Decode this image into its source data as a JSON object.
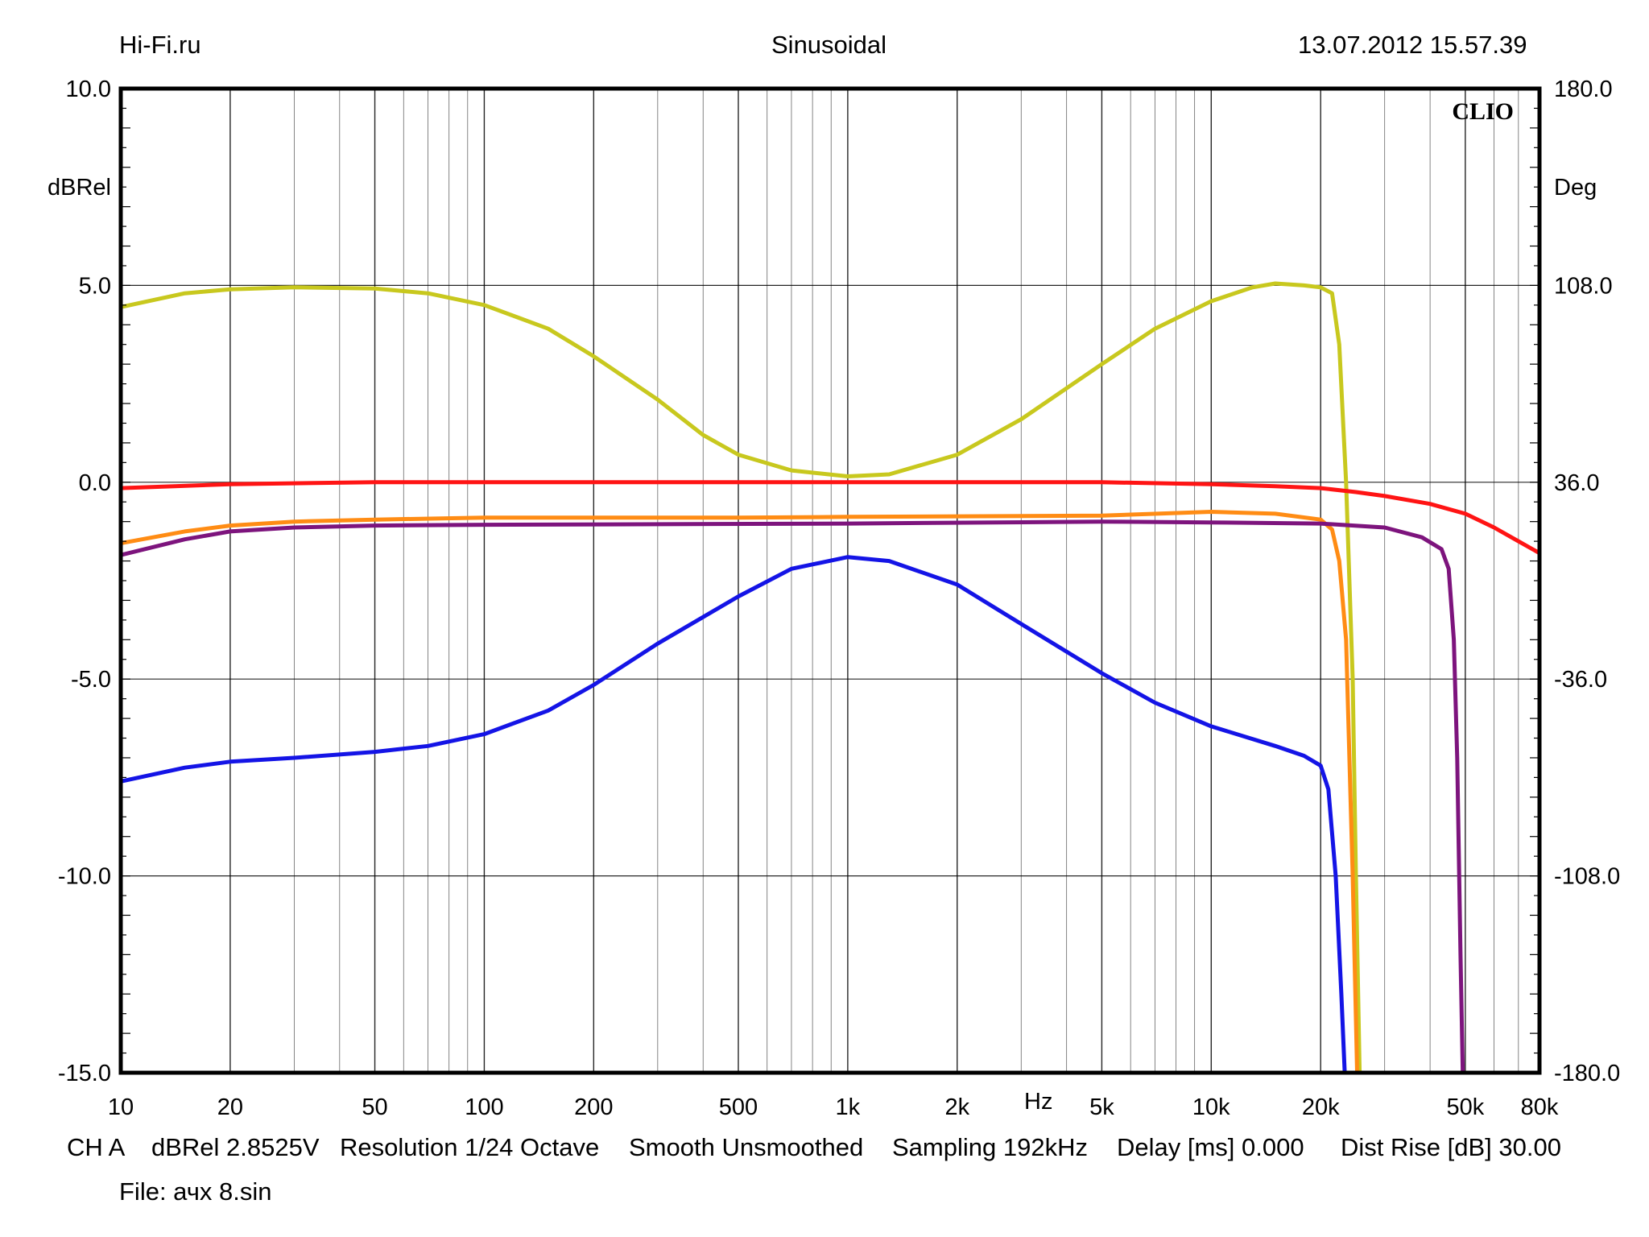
{
  "header": {
    "left": "Hi-Fi.ru",
    "center": "Sinusoidal",
    "right": "13.07.2012 15.57.39"
  },
  "footer": {
    "settings": [
      "CH A",
      "dBRel 2.8525V",
      "Resolution 1/24 Octave",
      "Smooth Unsmoothed",
      "Sampling 192kHz",
      "Delay [ms] 0.000",
      "Dist Rise [dB] 30.00"
    ],
    "file": "File: ачх 8.sin"
  },
  "chart_data": {
    "type": "line",
    "logo": "CLIO",
    "xscale": "log",
    "xlim": [
      10,
      80000
    ],
    "ylim": [
      -15,
      10
    ],
    "y2lim": [
      -180,
      180
    ],
    "xlabel": "Hz",
    "ylabel": "dBRel",
    "y2label": "Deg",
    "grid": true,
    "x_ticks": [
      {
        "v": 10,
        "label": "10"
      },
      {
        "v": 20,
        "label": "20"
      },
      {
        "v": 50,
        "label": "50"
      },
      {
        "v": 100,
        "label": "100"
      },
      {
        "v": 200,
        "label": "200"
      },
      {
        "v": 500,
        "label": "500"
      },
      {
        "v": 1000,
        "label": "1k"
      },
      {
        "v": 2000,
        "label": "2k"
      },
      {
        "v": 5000,
        "label": "5k"
      },
      {
        "v": 10000,
        "label": "10k"
      },
      {
        "v": 20000,
        "label": "20k"
      },
      {
        "v": 50000,
        "label": "50k"
      },
      {
        "v": 80000,
        "label": "80k"
      }
    ],
    "y_ticks": [
      {
        "v": 10,
        "label": "10.0"
      },
      {
        "v": 5,
        "label": "5.0"
      },
      {
        "v": 0,
        "label": "0.0"
      },
      {
        "v": -5,
        "label": "-5.0"
      },
      {
        "v": -10,
        "label": "-10.0"
      },
      {
        "v": -15,
        "label": "-15.0"
      }
    ],
    "y2_ticks": [
      {
        "v": 180,
        "label": "180.0"
      },
      {
        "v": 108,
        "label": "108.0"
      },
      {
        "v": 36,
        "label": "36.0"
      },
      {
        "v": -36,
        "label": "-36.0"
      },
      {
        "v": -108,
        "label": "-108.0"
      },
      {
        "v": -180,
        "label": "-180.0"
      }
    ],
    "series": [
      {
        "color": "#c8c81e",
        "points": [
          [
            10,
            4.45
          ],
          [
            15,
            4.8
          ],
          [
            20,
            4.9
          ],
          [
            30,
            4.95
          ],
          [
            50,
            4.92
          ],
          [
            70,
            4.8
          ],
          [
            100,
            4.5
          ],
          [
            150,
            3.9
          ],
          [
            200,
            3.2
          ],
          [
            300,
            2.1
          ],
          [
            400,
            1.2
          ],
          [
            500,
            0.7
          ],
          [
            700,
            0.3
          ],
          [
            1000,
            0.15
          ],
          [
            1300,
            0.2
          ],
          [
            2000,
            0.7
          ],
          [
            3000,
            1.6
          ],
          [
            5000,
            3.0
          ],
          [
            7000,
            3.9
          ],
          [
            10000,
            4.6
          ],
          [
            13000,
            4.95
          ],
          [
            15000,
            5.05
          ],
          [
            18000,
            5.0
          ],
          [
            20000,
            4.95
          ],
          [
            21500,
            4.8
          ],
          [
            22500,
            3.5
          ],
          [
            23500,
            0.0
          ],
          [
            24500,
            -5.0
          ],
          [
            25000,
            -10.0
          ],
          [
            25600,
            -15.0
          ]
        ]
      },
      {
        "color": "#ff1414",
        "points": [
          [
            10,
            -0.15
          ],
          [
            20,
            -0.05
          ],
          [
            50,
            0.0
          ],
          [
            100,
            0.0
          ],
          [
            1000,
            0.0
          ],
          [
            5000,
            0.0
          ],
          [
            10000,
            -0.05
          ],
          [
            15000,
            -0.1
          ],
          [
            20000,
            -0.15
          ],
          [
            25000,
            -0.25
          ],
          [
            30000,
            -0.35
          ],
          [
            40000,
            -0.55
          ],
          [
            50000,
            -0.8
          ],
          [
            60000,
            -1.15
          ],
          [
            70000,
            -1.5
          ],
          [
            80000,
            -1.8
          ]
        ]
      },
      {
        "color": "#ff8c14",
        "points": [
          [
            10,
            -1.55
          ],
          [
            15,
            -1.25
          ],
          [
            20,
            -1.1
          ],
          [
            30,
            -1.0
          ],
          [
            50,
            -0.95
          ],
          [
            100,
            -0.9
          ],
          [
            500,
            -0.9
          ],
          [
            1000,
            -0.88
          ],
          [
            5000,
            -0.85
          ],
          [
            10000,
            -0.75
          ],
          [
            15000,
            -0.8
          ],
          [
            20000,
            -0.95
          ],
          [
            21500,
            -1.2
          ],
          [
            22500,
            -2.0
          ],
          [
            23500,
            -4.0
          ],
          [
            24500,
            -10.0
          ],
          [
            25200,
            -15.0
          ]
        ]
      },
      {
        "color": "#7d147d",
        "points": [
          [
            10,
            -1.85
          ],
          [
            15,
            -1.45
          ],
          [
            20,
            -1.25
          ],
          [
            30,
            -1.15
          ],
          [
            50,
            -1.1
          ],
          [
            100,
            -1.08
          ],
          [
            1000,
            -1.05
          ],
          [
            5000,
            -1.0
          ],
          [
            10000,
            -1.02
          ],
          [
            20000,
            -1.05
          ],
          [
            30000,
            -1.15
          ],
          [
            38000,
            -1.4
          ],
          [
            43000,
            -1.7
          ],
          [
            45000,
            -2.2
          ],
          [
            46500,
            -4.0
          ],
          [
            47500,
            -7.0
          ],
          [
            48500,
            -12.0
          ],
          [
            49200,
            -15.0
          ]
        ]
      },
      {
        "color": "#1414e6",
        "points": [
          [
            10,
            -7.6
          ],
          [
            15,
            -7.25
          ],
          [
            20,
            -7.1
          ],
          [
            30,
            -7.0
          ],
          [
            50,
            -6.85
          ],
          [
            70,
            -6.7
          ],
          [
            100,
            -6.4
          ],
          [
            150,
            -5.8
          ],
          [
            200,
            -5.15
          ],
          [
            300,
            -4.1
          ],
          [
            500,
            -2.9
          ],
          [
            700,
            -2.2
          ],
          [
            1000,
            -1.9
          ],
          [
            1300,
            -2.0
          ],
          [
            2000,
            -2.6
          ],
          [
            3000,
            -3.6
          ],
          [
            5000,
            -4.85
          ],
          [
            7000,
            -5.6
          ],
          [
            10000,
            -6.2
          ],
          [
            15000,
            -6.7
          ],
          [
            18000,
            -6.95
          ],
          [
            20000,
            -7.2
          ],
          [
            21000,
            -7.8
          ],
          [
            22000,
            -10.0
          ],
          [
            22800,
            -13.0
          ],
          [
            23300,
            -15.0
          ]
        ]
      }
    ]
  }
}
